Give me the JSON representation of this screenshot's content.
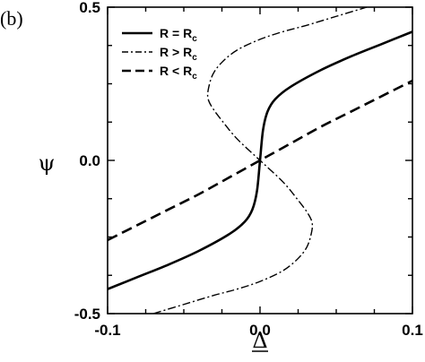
{
  "chart_data": {
    "type": "line",
    "panel_label": "(b)",
    "xlabel": "Δ",
    "ylabel": "ψ",
    "xlim": [
      -0.1,
      0.1
    ],
    "ylim": [
      -0.5,
      0.5
    ],
    "xticks": [
      -0.1,
      0.0,
      0.1
    ],
    "xtick_labels": [
      "-0.1",
      "0.0",
      "0.1"
    ],
    "yticks": [
      -0.5,
      0.0,
      0.5
    ],
    "ytick_labels": [
      "-0.5",
      "0.0",
      "0.5"
    ],
    "grid": false,
    "legend_position": "top-left",
    "series": [
      {
        "name": "R = Rc",
        "label_main": "R = R",
        "label_sub": "c",
        "style": "solid",
        "color": "#000000",
        "x": [
          -0.1,
          -0.08,
          -0.06,
          -0.04,
          -0.02,
          -0.01,
          -0.005,
          -0.002,
          0,
          0.002,
          0.005,
          0.01,
          0.02,
          0.04,
          0.06,
          0.08,
          0.1
        ],
        "y": [
          -0.42,
          -0.38,
          -0.34,
          -0.295,
          -0.24,
          -0.2,
          -0.16,
          -0.1,
          0,
          0.1,
          0.16,
          0.2,
          0.24,
          0.295,
          0.34,
          0.38,
          0.42
        ]
      },
      {
        "name": "R > Rc",
        "label_main": "R > R",
        "label_sub": "c",
        "style": "dashdot",
        "color": "#000000",
        "x": [
          -0.07,
          -0.05,
          -0.03,
          -0.015,
          0,
          0.015,
          0.025,
          0.031,
          0.034,
          0.034,
          0.031,
          0.025,
          0.015,
          0,
          -0.015,
          -0.025,
          -0.031,
          -0.034,
          -0.034,
          -0.031,
          -0.025,
          -0.015,
          0,
          0.015,
          0.03,
          0.05,
          0.07
        ],
        "y": [
          -0.5,
          -0.47,
          -0.44,
          -0.42,
          -0.395,
          -0.36,
          -0.32,
          -0.28,
          -0.23,
          -0.2,
          -0.17,
          -0.13,
          -0.07,
          0,
          0.07,
          0.13,
          0.17,
          0.2,
          0.23,
          0.28,
          0.32,
          0.36,
          0.395,
          0.42,
          0.44,
          0.47,
          0.5
        ]
      },
      {
        "name": "R < Rc",
        "label_main": "R < R",
        "label_sub": "c",
        "style": "dashed",
        "color": "#000000",
        "x": [
          -0.1,
          -0.08,
          -0.06,
          -0.04,
          -0.02,
          0,
          0.02,
          0.04,
          0.06,
          0.08,
          0.1
        ],
        "y": [
          -0.26,
          -0.21,
          -0.16,
          -0.11,
          -0.055,
          0,
          0.055,
          0.11,
          0.16,
          0.21,
          0.26
        ]
      }
    ]
  }
}
